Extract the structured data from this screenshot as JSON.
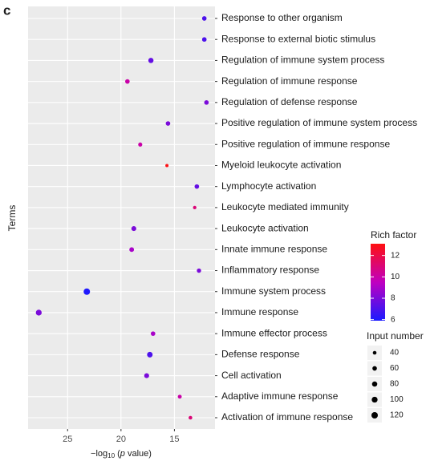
{
  "panel_label": "c",
  "chart_data": {
    "type": "dotplot",
    "ylabel": "Terms",
    "xlabel": {
      "prefix": "−log",
      "sub": "10",
      "open": " (",
      "italic": "p",
      "close": " value)"
    },
    "categories": [
      "Response to other organism",
      "Response to external biotic stimulus",
      "Regulation of immune system process",
      "Regulation of immune response",
      "Regulation of defense response",
      "Positive regulation of immune system process",
      "Positive regulation of immune response",
      "Myeloid leukocyte activation",
      "Lymphocyte activation",
      "Leukocyte mediated immunity",
      "Leukocyte activation",
      "Innate immune response",
      "Inflammatory response",
      "Immune system process",
      "Immune response",
      "Immune effector process",
      "Defense response",
      "Cell activation",
      "Adaptive immune response",
      "Activation of immune response"
    ],
    "values": [
      12.2,
      12.2,
      17.2,
      19.4,
      12.0,
      15.6,
      18.2,
      15.7,
      12.9,
      13.1,
      18.8,
      19.0,
      12.7,
      23.2,
      27.7,
      17.0,
      17.3,
      17.6,
      14.5,
      13.5
    ],
    "rich_factor": [
      7,
      7,
      7.5,
      10,
      8,
      8,
      10,
      13,
      7.5,
      11,
      8,
      9,
      8,
      6,
      8,
      9,
      7,
      8,
      10,
      11
    ],
    "input_number": [
      60,
      60,
      80,
      60,
      60,
      60,
      50,
      30,
      60,
      35,
      70,
      65,
      55,
      120,
      100,
      60,
      90,
      70,
      45,
      40
    ],
    "xlim": [
      28.7,
      11.2
    ],
    "xticks": [
      25,
      20,
      15
    ],
    "grid": true,
    "color_legend": {
      "title": "Rich factor",
      "lim": [
        5.9,
        13.1
      ],
      "ticks": [
        6,
        8,
        10,
        12
      ],
      "colormap": [
        "#1a1aff",
        "#c000c0",
        "#ff1010"
      ]
    },
    "size_legend": {
      "title": "Input number",
      "values": [
        40,
        60,
        80,
        100,
        120
      ]
    }
  }
}
